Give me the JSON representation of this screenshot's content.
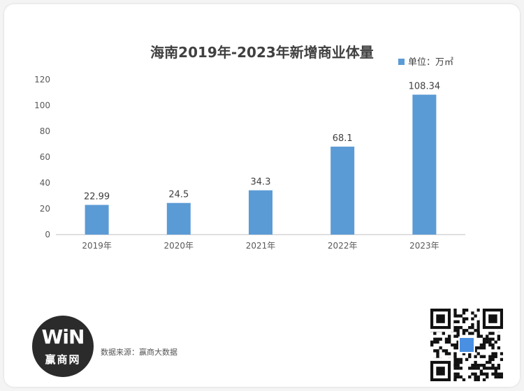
{
  "chart_data": {
    "type": "bar",
    "title": "海南2019年-2023年新增商业体量",
    "categories": [
      "2019年",
      "2020年",
      "2021年",
      "2022年",
      "2023年"
    ],
    "series": [
      {
        "name": "单位：万㎡",
        "values": [
          22.99,
          24.5,
          34.3,
          68.1,
          108.34
        ],
        "labels": [
          "22.99",
          "24.5",
          "34.3",
          "68.1",
          "108.34"
        ]
      }
    ],
    "yticks": [
      "0",
      "20",
      "40",
      "60",
      "80",
      "100",
      "120"
    ],
    "ylim": [
      0,
      120
    ],
    "grid": false,
    "legend": "top-right",
    "bar_color": "#5b9bd5"
  },
  "footer": {
    "source": "数据来源：赢商大数据"
  },
  "logo": {
    "mark": "WiN",
    "name": "赢商网"
  },
  "colors": {
    "background": "#ffffff",
    "axis": "#bfbfbf",
    "text": "#404040",
    "logo_bg": "#2b2b2b"
  }
}
